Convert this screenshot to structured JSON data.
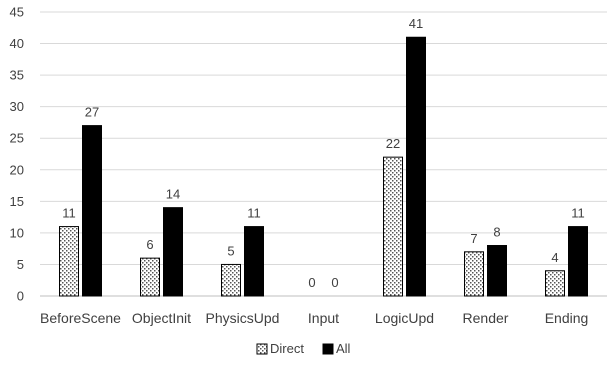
{
  "chart_data": {
    "type": "bar",
    "title": "",
    "xlabel": "",
    "ylabel": "",
    "ylim": [
      0,
      45
    ],
    "yticks": [
      0,
      5,
      10,
      15,
      20,
      25,
      30,
      35,
      40,
      45
    ],
    "grid": true,
    "legend_position": "bottom",
    "categories": [
      "BeforeScene",
      "ObjectInit",
      "PhysicsUpd",
      "Input",
      "LogicUpd",
      "Render",
      "Ending"
    ],
    "series": [
      {
        "name": "Direct",
        "values": [
          11,
          6,
          5,
          0,
          22,
          7,
          4
        ],
        "color": "#ffffff",
        "pattern": "dotted"
      },
      {
        "name": "All",
        "values": [
          27,
          14,
          11,
          0,
          41,
          8,
          11
        ],
        "color": "#000000",
        "pattern": "solid"
      }
    ]
  }
}
